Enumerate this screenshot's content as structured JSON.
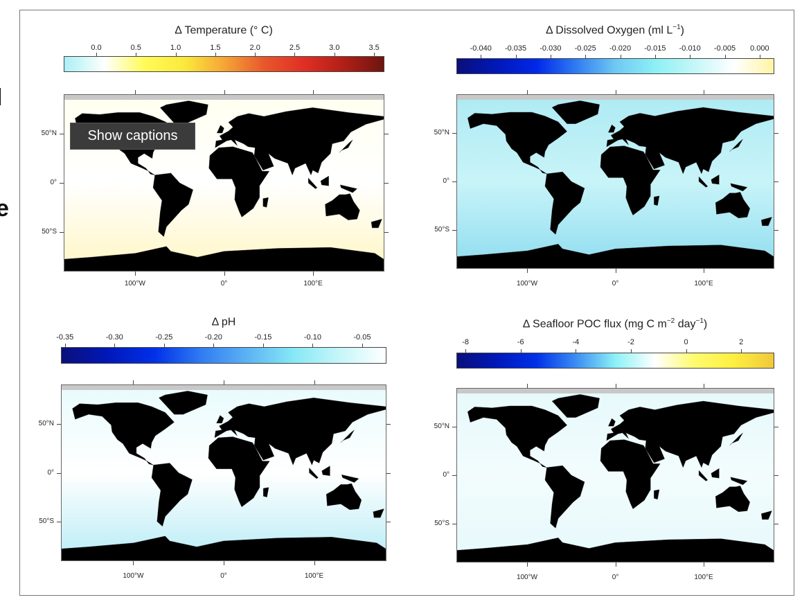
{
  "background_fragments": [
    "l",
    "e"
  ],
  "tooltip": {
    "label": "Show captions"
  },
  "axes": {
    "lon_ticks": [
      {
        "value": -100,
        "label": "100°W"
      },
      {
        "value": 0,
        "label": "0°"
      },
      {
        "value": 100,
        "label": "100°E"
      }
    ],
    "lat_ticks": [
      {
        "value": 50,
        "label": "50°N"
      },
      {
        "value": 0,
        "label": "0°"
      },
      {
        "value": -50,
        "label": "50°S"
      }
    ]
  },
  "panels": [
    {
      "title": "Δ Temperature (° C)",
      "title_main": "Δ Temperature (° C)",
      "title_sup1": "",
      "title_mid": "",
      "title_sup2": "",
      "title_end": "",
      "range": [
        -0.41,
        3.63
      ],
      "ticks": [
        "0.0",
        "0.5",
        "1.0",
        "1.5",
        "2.0",
        "2.5",
        "3.0",
        "3.5"
      ],
      "colors": [
        "#aaf0f5",
        "#ffffff",
        "#fffb5a",
        "#fbe93c",
        "#f5a636",
        "#e8572c",
        "#e02f24",
        "#b01f17",
        "#6e1510"
      ],
      "ocean": [
        "#fffff0",
        "#ffffff",
        "#fff6c4"
      ]
    },
    {
      "title_main": "Δ Dissolved Oxygen (ml L",
      "title_sup1": "−1",
      "title_mid": ")",
      "title_sup2": "",
      "title_end": "",
      "range": [
        -0.0435,
        0.0021
      ],
      "ticks": [
        "-0.040",
        "-0.035",
        "-0.030",
        "-0.025",
        "-0.020",
        "-0.015",
        "-0.010",
        "-0.005",
        "0.000"
      ],
      "colors": [
        "#0a0f7a",
        "#0018b8",
        "#0028e8",
        "#2f7bf2",
        "#6fc8f3",
        "#8cf0f5",
        "#c4f7f8",
        "#ffffff",
        "#fff5a6"
      ],
      "ocean": [
        "#aeeaf4",
        "#c8f4f8",
        "#8fdcf0"
      ]
    },
    {
      "title_main": "Δ pH",
      "title_sup1": "",
      "title_mid": "",
      "title_sup2": "",
      "title_end": "",
      "range": [
        -0.354,
        -0.0255
      ],
      "ticks": [
        "-0.35",
        "-0.30",
        "-0.25",
        "-0.20",
        "-0.15",
        "-0.10",
        "-0.05"
      ],
      "colors": [
        "#0a0f7a",
        "#0018b8",
        "#0030e8",
        "#2f7bf2",
        "#5cb2f4",
        "#86e8f5",
        "#c5f6f9",
        "#ffffff"
      ],
      "ocean": [
        "#e8fbfd",
        "#ffffff",
        "#b8ecf6"
      ]
    },
    {
      "title_main": "Δ Seafloor POC flux (mg C m",
      "title_sup1": "−2",
      "title_mid": " day",
      "title_sup2": "−1",
      "title_end": ")",
      "range": [
        -8.33,
        3.2
      ],
      "ticks": [
        "-8",
        "-6",
        "-4",
        "-2",
        "0",
        "2"
      ],
      "colors": [
        "#0a0f7a",
        "#0018b8",
        "#0030e8",
        "#3c8cf2",
        "#8cf2f6",
        "#ffffff",
        "#fffb6e",
        "#fdef40",
        "#f0c83a"
      ],
      "ocean": [
        "#e6f9fb",
        "#f2fcfd",
        "#e6f9fb"
      ]
    }
  ]
}
